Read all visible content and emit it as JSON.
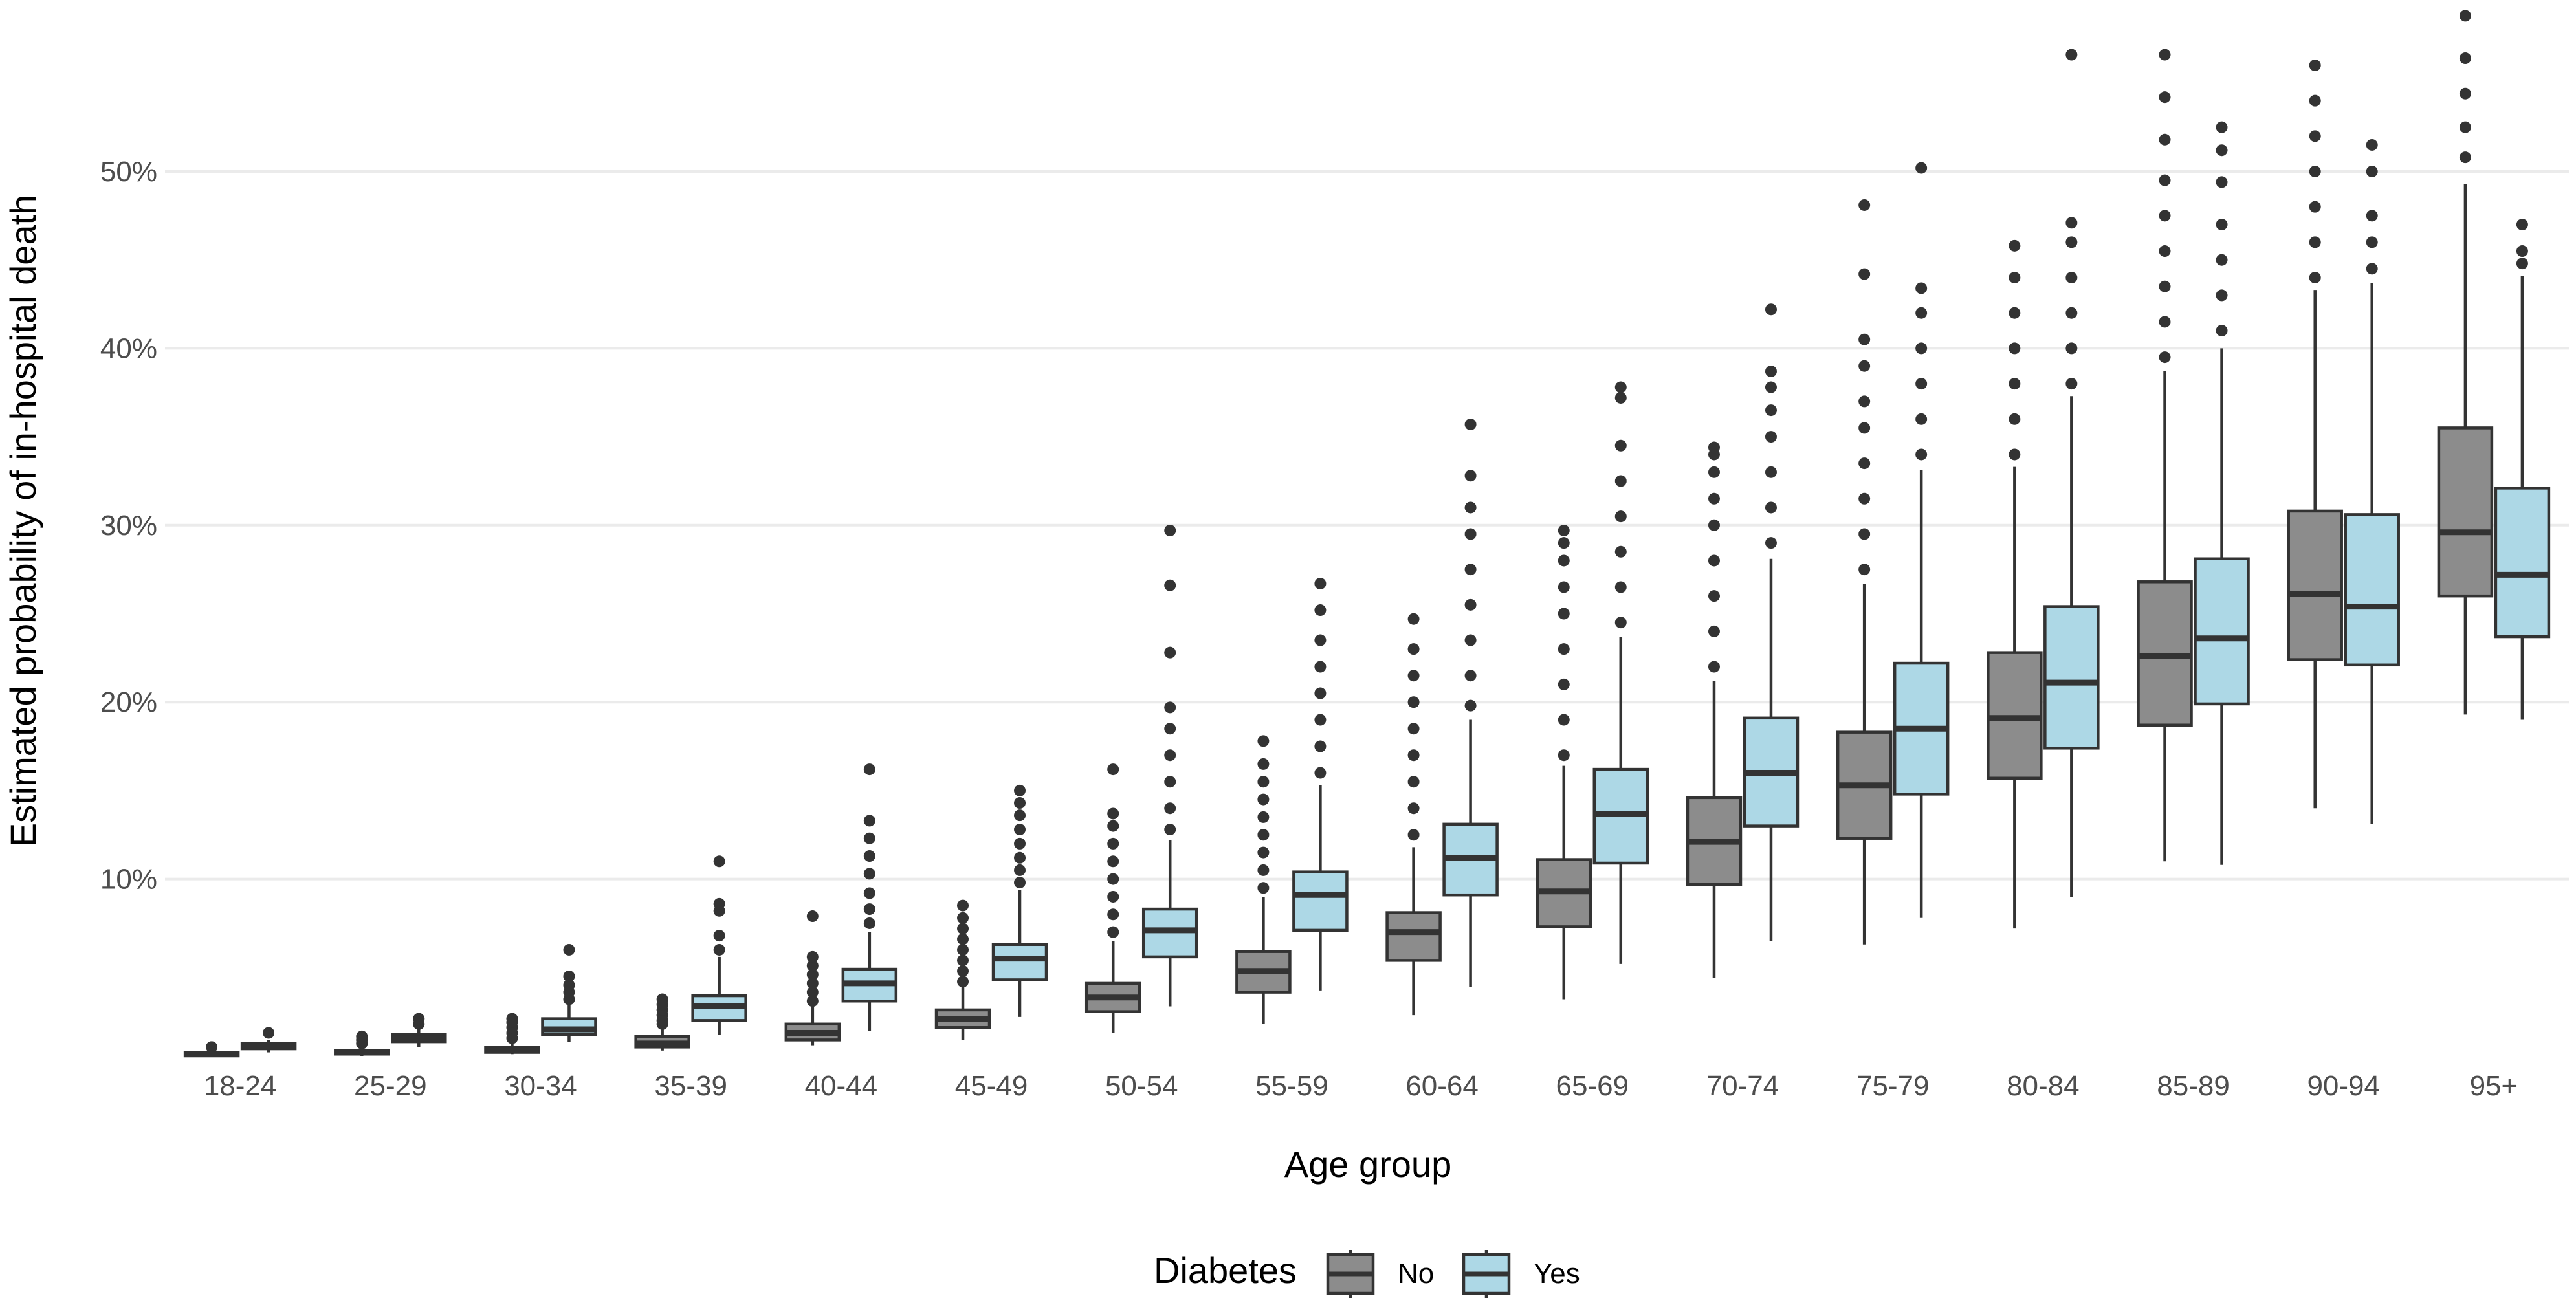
{
  "chart_data": {
    "type": "boxplot",
    "title": "",
    "xlabel": "Age group",
    "ylabel": "Estimated probability of in-hospital death",
    "ylim": [
      0,
      0.59
    ],
    "y_ticks": [
      {
        "value": 0.1,
        "label": "10%"
      },
      {
        "value": 0.2,
        "label": "20%"
      },
      {
        "value": 0.3,
        "label": "30%"
      },
      {
        "value": 0.4,
        "label": "40%"
      },
      {
        "value": 0.5,
        "label": "50%"
      }
    ],
    "grid": true,
    "categories": [
      "18-24",
      "25-29",
      "30-34",
      "35-39",
      "40-44",
      "45-49",
      "50-54",
      "55-59",
      "60-64",
      "65-69",
      "70-74",
      "75-79",
      "80-84",
      "85-89",
      "90-94",
      "95+"
    ],
    "legend": {
      "title": "Diabetes",
      "position": "bottom",
      "items": [
        {
          "label": "No",
          "color": "#8c8c8c"
        },
        {
          "label": "Yes",
          "color": "#add8e6"
        }
      ]
    },
    "series": [
      {
        "name": "No",
        "color": "#8c8c8c",
        "boxes": [
          {
            "category": "18-24",
            "whisker_low": 0.0,
            "q1": 0.0,
            "median": 0.001,
            "q3": 0.002,
            "whisker_high": 0.003,
            "outliers": [
              0.005
            ]
          },
          {
            "category": "25-29",
            "whisker_low": 0.0,
            "q1": 0.001,
            "median": 0.002,
            "q3": 0.003,
            "whisker_high": 0.005,
            "outliers": [
              0.007,
              0.009,
              0.011
            ]
          },
          {
            "category": "30-34",
            "whisker_low": 0.001,
            "q1": 0.002,
            "median": 0.003,
            "q3": 0.005,
            "whisker_high": 0.008,
            "outliers": [
              0.01,
              0.013,
              0.016,
              0.019,
              0.021
            ]
          },
          {
            "category": "35-39",
            "whisker_low": 0.003,
            "q1": 0.005,
            "median": 0.007,
            "q3": 0.011,
            "whisker_high": 0.016,
            "outliers": [
              0.018,
              0.02,
              0.023,
              0.026,
              0.029,
              0.032
            ]
          },
          {
            "category": "40-44",
            "whisker_low": 0.006,
            "q1": 0.009,
            "median": 0.013,
            "q3": 0.018,
            "whisker_high": 0.028,
            "outliers": [
              0.031,
              0.036,
              0.041,
              0.046,
              0.051,
              0.056,
              0.079
            ]
          },
          {
            "category": "45-49",
            "whisker_low": 0.009,
            "q1": 0.016,
            "median": 0.021,
            "q3": 0.026,
            "whisker_high": 0.039,
            "outliers": [
              0.042,
              0.048,
              0.054,
              0.06,
              0.066,
              0.072,
              0.078,
              0.085
            ]
          },
          {
            "category": "50-54",
            "whisker_low": 0.013,
            "q1": 0.025,
            "median": 0.033,
            "q3": 0.041,
            "whisker_high": 0.065,
            "outliers": [
              0.07,
              0.08,
              0.09,
              0.1,
              0.11,
              0.12,
              0.13,
              0.137,
              0.162
            ]
          },
          {
            "category": "55-59",
            "whisker_low": 0.018,
            "q1": 0.036,
            "median": 0.048,
            "q3": 0.059,
            "whisker_high": 0.09,
            "outliers": [
              0.095,
              0.105,
              0.115,
              0.125,
              0.135,
              0.145,
              0.155,
              0.165,
              0.178
            ]
          },
          {
            "category": "60-64",
            "whisker_low": 0.023,
            "q1": 0.054,
            "median": 0.07,
            "q3": 0.081,
            "whisker_high": 0.118,
            "outliers": [
              0.125,
              0.14,
              0.155,
              0.17,
              0.185,
              0.2,
              0.215,
              0.23,
              0.247
            ]
          },
          {
            "category": "65-69",
            "whisker_low": 0.032,
            "q1": 0.073,
            "median": 0.093,
            "q3": 0.111,
            "whisker_high": 0.164,
            "outliers": [
              0.17,
              0.19,
              0.21,
              0.23,
              0.25,
              0.265,
              0.28,
              0.29,
              0.297
            ]
          },
          {
            "category": "70-74",
            "whisker_low": 0.044,
            "q1": 0.097,
            "median": 0.121,
            "q3": 0.146,
            "whisker_high": 0.212,
            "outliers": [
              0.22,
              0.24,
              0.26,
              0.28,
              0.3,
              0.315,
              0.33,
              0.34,
              0.344
            ]
          },
          {
            "category": "75-79",
            "whisker_low": 0.063,
            "q1": 0.123,
            "median": 0.153,
            "q3": 0.183,
            "whisker_high": 0.267,
            "outliers": [
              0.275,
              0.295,
              0.315,
              0.335,
              0.355,
              0.37,
              0.39,
              0.405,
              0.442,
              0.481
            ]
          },
          {
            "category": "80-84",
            "whisker_low": 0.072,
            "q1": 0.157,
            "median": 0.191,
            "q3": 0.228,
            "whisker_high": 0.333,
            "outliers": [
              0.34,
              0.36,
              0.38,
              0.4,
              0.42,
              0.44,
              0.458
            ]
          },
          {
            "category": "85-89",
            "whisker_low": 0.11,
            "q1": 0.187,
            "median": 0.226,
            "q3": 0.268,
            "whisker_high": 0.387,
            "outliers": [
              0.395,
              0.415,
              0.435,
              0.455,
              0.475,
              0.495,
              0.518,
              0.542,
              0.566
            ]
          },
          {
            "category": "90-94",
            "whisker_low": 0.14,
            "q1": 0.224,
            "median": 0.261,
            "q3": 0.308,
            "whisker_high": 0.433,
            "outliers": [
              0.44,
              0.46,
              0.48,
              0.5,
              0.52,
              0.54,
              0.56
            ]
          },
          {
            "category": "95+",
            "whisker_low": 0.193,
            "q1": 0.26,
            "median": 0.296,
            "q3": 0.355,
            "whisker_high": 0.493,
            "outliers": [
              0.508,
              0.525,
              0.544,
              0.564,
              0.588
            ]
          }
        ]
      },
      {
        "name": "Yes",
        "color": "#add8e6",
        "boxes": [
          {
            "category": "18-24",
            "whisker_low": 0.002,
            "q1": 0.004,
            "median": 0.005,
            "q3": 0.007,
            "whisker_high": 0.009,
            "outliers": [
              0.013
            ]
          },
          {
            "category": "25-29",
            "whisker_low": 0.005,
            "q1": 0.008,
            "median": 0.01,
            "q3": 0.012,
            "whisker_high": 0.016,
            "outliers": [
              0.018,
              0.021
            ]
          },
          {
            "category": "30-34",
            "whisker_low": 0.008,
            "q1": 0.012,
            "median": 0.015,
            "q3": 0.021,
            "whisker_high": 0.03,
            "outliers": [
              0.032,
              0.036,
              0.04,
              0.045,
              0.06
            ]
          },
          {
            "category": "35-39",
            "whisker_low": 0.012,
            "q1": 0.02,
            "median": 0.028,
            "q3": 0.034,
            "whisker_high": 0.056,
            "outliers": [
              0.06,
              0.068,
              0.082,
              0.086,
              0.11
            ]
          },
          {
            "category": "40-44",
            "whisker_low": 0.014,
            "q1": 0.031,
            "median": 0.041,
            "q3": 0.049,
            "whisker_high": 0.07,
            "outliers": [
              0.075,
              0.083,
              0.092,
              0.103,
              0.113,
              0.123,
              0.133,
              0.162
            ]
          },
          {
            "category": "45-49",
            "whisker_low": 0.022,
            "q1": 0.043,
            "median": 0.055,
            "q3": 0.063,
            "whisker_high": 0.094,
            "outliers": [
              0.098,
              0.105,
              0.112,
              0.12,
              0.128,
              0.136,
              0.143,
              0.15
            ]
          },
          {
            "category": "50-54",
            "whisker_low": 0.028,
            "q1": 0.056,
            "median": 0.071,
            "q3": 0.083,
            "whisker_high": 0.122,
            "outliers": [
              0.128,
              0.14,
              0.155,
              0.17,
              0.185,
              0.197,
              0.228,
              0.266,
              0.297
            ]
          },
          {
            "category": "55-59",
            "whisker_low": 0.037,
            "q1": 0.071,
            "median": 0.091,
            "q3": 0.104,
            "whisker_high": 0.153,
            "outliers": [
              0.16,
              0.175,
              0.19,
              0.205,
              0.22,
              0.235,
              0.252,
              0.267
            ]
          },
          {
            "category": "60-64",
            "whisker_low": 0.039,
            "q1": 0.091,
            "median": 0.112,
            "q3": 0.131,
            "whisker_high": 0.19,
            "outliers": [
              0.198,
              0.215,
              0.235,
              0.255,
              0.275,
              0.295,
              0.31,
              0.328,
              0.357
            ]
          },
          {
            "category": "65-69",
            "whisker_low": 0.052,
            "q1": 0.109,
            "median": 0.137,
            "q3": 0.162,
            "whisker_high": 0.237,
            "outliers": [
              0.245,
              0.265,
              0.285,
              0.305,
              0.325,
              0.345,
              0.372,
              0.378
            ]
          },
          {
            "category": "70-74",
            "whisker_low": 0.065,
            "q1": 0.13,
            "median": 0.16,
            "q3": 0.191,
            "whisker_high": 0.281,
            "outliers": [
              0.29,
              0.31,
              0.33,
              0.35,
              0.365,
              0.378,
              0.387,
              0.422
            ]
          },
          {
            "category": "75-79",
            "whisker_low": 0.078,
            "q1": 0.148,
            "median": 0.185,
            "q3": 0.222,
            "whisker_high": 0.331,
            "outliers": [
              0.34,
              0.36,
              0.38,
              0.4,
              0.42,
              0.434,
              0.502
            ]
          },
          {
            "category": "80-84",
            "whisker_low": 0.09,
            "q1": 0.174,
            "median": 0.211,
            "q3": 0.254,
            "whisker_high": 0.373,
            "outliers": [
              0.38,
              0.4,
              0.42,
              0.44,
              0.46,
              0.471,
              0.566
            ]
          },
          {
            "category": "85-89",
            "whisker_low": 0.108,
            "q1": 0.199,
            "median": 0.236,
            "q3": 0.281,
            "whisker_high": 0.4,
            "outliers": [
              0.41,
              0.43,
              0.45,
              0.47,
              0.494,
              0.512,
              0.525
            ]
          },
          {
            "category": "90-94",
            "whisker_low": 0.131,
            "q1": 0.221,
            "median": 0.254,
            "q3": 0.306,
            "whisker_high": 0.437,
            "outliers": [
              0.445,
              0.46,
              0.475,
              0.5,
              0.515
            ]
          },
          {
            "category": "95+",
            "whisker_low": 0.19,
            "q1": 0.237,
            "median": 0.272,
            "q3": 0.321,
            "whisker_high": 0.441,
            "outliers": [
              0.448,
              0.455,
              0.47
            ]
          }
        ]
      }
    ]
  }
}
